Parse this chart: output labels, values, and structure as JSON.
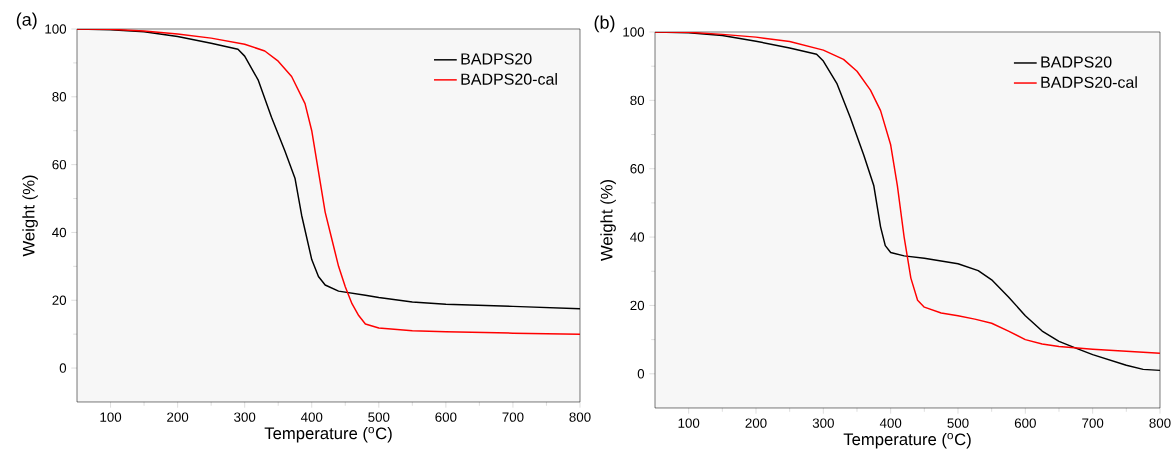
{
  "chart_data": [
    {
      "type": "line",
      "title": "(a)",
      "xlabel": "Temperature ($^{o}$C)",
      "ylabel": "Weight (%)",
      "xlim": [
        50,
        800
      ],
      "ylim": [
        -10,
        100
      ],
      "xticks": [
        100,
        200,
        300,
        400,
        500,
        600,
        700,
        800
      ],
      "yticks": [
        0,
        20,
        40,
        60,
        80,
        100
      ],
      "legend": "top right",
      "grid": false,
      "marker": "none",
      "line_style": "solid",
      "series": [
        {
          "name": "BADPS20",
          "color": "#000000",
          "x": [
            50,
            100,
            150,
            200,
            250,
            290,
            300,
            320,
            340,
            360,
            375,
            385,
            400,
            410,
            420,
            440,
            480,
            500,
            550,
            600,
            700,
            800
          ],
          "values": [
            100,
            99.8,
            99.2,
            97.8,
            95.8,
            94,
            92,
            85,
            74,
            64,
            56,
            45,
            32,
            27,
            24.5,
            22.7,
            21.5,
            20.8,
            19.5,
            18.8,
            18.2,
            17.5
          ]
        },
        {
          "name": "BADPS20-cal",
          "color": "#ff0000",
          "x": [
            50,
            100,
            150,
            200,
            250,
            300,
            330,
            350,
            370,
            390,
            400,
            410,
            420,
            430,
            440,
            450,
            460,
            470,
            480,
            500,
            550,
            600,
            700,
            800
          ],
          "values": [
            100,
            99.9,
            99.4,
            98.5,
            97.3,
            95.5,
            93.5,
            90.5,
            86,
            78,
            70,
            58,
            46,
            38,
            30,
            24,
            19,
            15.5,
            13,
            11.8,
            11,
            10.7,
            10.3,
            10
          ]
        }
      ]
    },
    {
      "type": "line",
      "title": "(b)",
      "xlabel": "Temperature ($^{o}$C)",
      "ylabel": "Weight (%)",
      "xlim": [
        50,
        800
      ],
      "ylim": [
        -10,
        100
      ],
      "xticks": [
        100,
        200,
        300,
        400,
        500,
        600,
        700,
        800
      ],
      "yticks": [
        0,
        20,
        40,
        60,
        80,
        100
      ],
      "legend": "top right",
      "grid": false,
      "marker": "none",
      "line_style": "solid",
      "series": [
        {
          "name": "BADPS20",
          "color": "#000000",
          "x": [
            50,
            100,
            150,
            200,
            250,
            290,
            300,
            320,
            340,
            360,
            375,
            385,
            392,
            400,
            420,
            450,
            500,
            530,
            550,
            575,
            600,
            625,
            650,
            675,
            700,
            750,
            775,
            800
          ],
          "values": [
            100,
            99.8,
            99,
            97.3,
            95.3,
            93.5,
            91.5,
            85,
            75,
            64,
            55,
            43,
            37.5,
            35.5,
            34.5,
            33.8,
            32.2,
            30.2,
            27.5,
            22.5,
            17,
            12.5,
            9.5,
            7.5,
            5.6,
            2.5,
            1.3,
            1
          ]
        },
        {
          "name": "BADPS20-cal",
          "color": "#ff0000",
          "x": [
            50,
            100,
            150,
            200,
            250,
            300,
            330,
            350,
            370,
            385,
            400,
            410,
            420,
            430,
            440,
            450,
            475,
            500,
            525,
            550,
            575,
            600,
            625,
            650,
            700,
            750,
            800
          ],
          "values": [
            100,
            99.9,
            99.3,
            98.5,
            97.2,
            94.7,
            92,
            88.5,
            83,
            77,
            67,
            55,
            40,
            28,
            21.5,
            19.5,
            17.8,
            17,
            16,
            14.8,
            12.5,
            10,
            8.7,
            8,
            7.2,
            6.6,
            6
          ]
        }
      ]
    }
  ]
}
